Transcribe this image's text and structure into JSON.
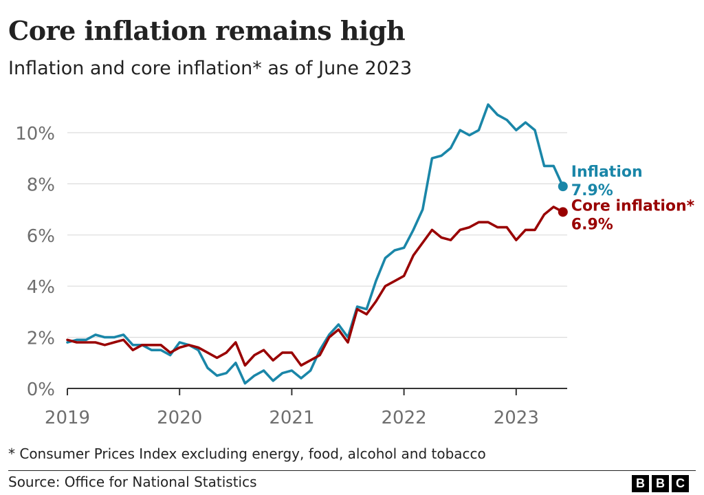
{
  "header": {
    "title": "Core inflation remains high",
    "subtitle": "Inflation and core inflation* as of June 2023"
  },
  "footer": {
    "footnote": "* Consumer Prices Index excluding energy, food, alcohol and tobacco",
    "source": "Source: Office for National Statistics",
    "logo_letters": [
      "B",
      "B",
      "C"
    ]
  },
  "chart_data": {
    "type": "line",
    "title": "Core inflation remains high",
    "subtitle": "Inflation and core inflation* as of June 2023",
    "xlabel": "",
    "ylabel": "",
    "ylim": [
      0,
      11
    ],
    "yticks": [
      0,
      2,
      4,
      6,
      8,
      10
    ],
    "ytick_labels": [
      "0%",
      "2%",
      "4%",
      "6%",
      "8%",
      "10%"
    ],
    "xticks": [
      0,
      12,
      24,
      36,
      48
    ],
    "xtick_labels": [
      "2019",
      "2020",
      "2021",
      "2022",
      "2023"
    ],
    "x_unit": "months since Jan 2019",
    "grid": true,
    "series": [
      {
        "name": "Inflation",
        "label_value": "7.9%",
        "color": "#1a86a8",
        "values": [
          1.8,
          1.9,
          1.9,
          2.1,
          2.0,
          2.0,
          2.1,
          1.7,
          1.7,
          1.5,
          1.5,
          1.3,
          1.8,
          1.7,
          1.5,
          0.8,
          0.5,
          0.6,
          1.0,
          0.2,
          0.5,
          0.7,
          0.3,
          0.6,
          0.7,
          0.4,
          0.7,
          1.5,
          2.1,
          2.5,
          2.0,
          3.2,
          3.1,
          4.2,
          5.1,
          5.4,
          5.5,
          6.2,
          7.0,
          9.0,
          9.1,
          9.4,
          10.1,
          9.9,
          10.1,
          11.1,
          10.7,
          10.5,
          10.1,
          10.4,
          10.1,
          8.7,
          8.7,
          7.9
        ]
      },
      {
        "name": "Core inflation*",
        "label_value": "6.9%",
        "color": "#990000",
        "values": [
          1.9,
          1.8,
          1.8,
          1.8,
          1.7,
          1.8,
          1.9,
          1.5,
          1.7,
          1.7,
          1.7,
          1.4,
          1.6,
          1.7,
          1.6,
          1.4,
          1.2,
          1.4,
          1.8,
          0.9,
          1.3,
          1.5,
          1.1,
          1.4,
          1.4,
          0.9,
          1.1,
          1.3,
          2.0,
          2.3,
          1.8,
          3.1,
          2.9,
          3.4,
          4.0,
          4.2,
          4.4,
          5.2,
          5.7,
          6.2,
          5.9,
          5.8,
          6.2,
          6.3,
          6.5,
          6.5,
          6.3,
          6.3,
          5.8,
          6.2,
          6.2,
          6.8,
          7.1,
          6.9
        ]
      }
    ]
  }
}
